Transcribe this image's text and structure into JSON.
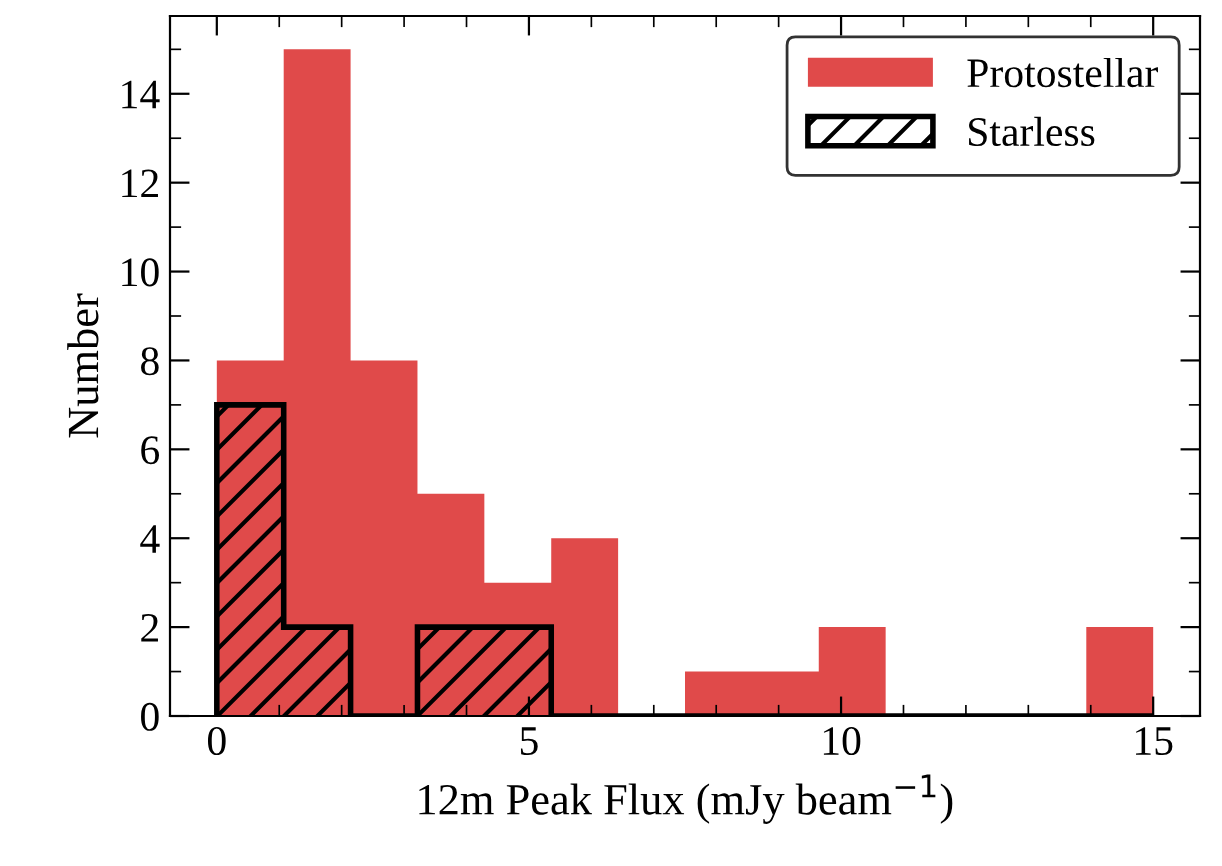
{
  "chart_data": {
    "type": "histogram",
    "xlabel": "12m Peak Flux (mJy beam$^{−1}$)",
    "ylabel": "Number",
    "bins": [
      0,
      1.0714,
      2.1429,
      3.2143,
      4.2857,
      5.3571,
      6.4286,
      7.5,
      8.5714,
      9.6429,
      10.7143,
      11.7857,
      12.8571,
      13.9286,
      15
    ],
    "series": [
      {
        "name": "Protostellar",
        "color": "#e04a4a",
        "values": [
          8,
          15,
          8,
          5,
          3,
          4,
          0,
          1,
          1,
          2,
          0,
          0,
          0,
          2
        ]
      },
      {
        "name": "Starless",
        "color": "#000000",
        "values": [
          7,
          2,
          0,
          2,
          2,
          0,
          0,
          0,
          0,
          0,
          0,
          0,
          0,
          0
        ]
      }
    ],
    "xlim": [
      -0.75,
      15.75
    ],
    "ylim": [
      0,
      15.75
    ],
    "xticks": [
      0,
      5,
      10,
      15
    ],
    "yticks": [
      0,
      2,
      4,
      6,
      8,
      10,
      12,
      14
    ],
    "legend": "top right",
    "grid": false
  }
}
